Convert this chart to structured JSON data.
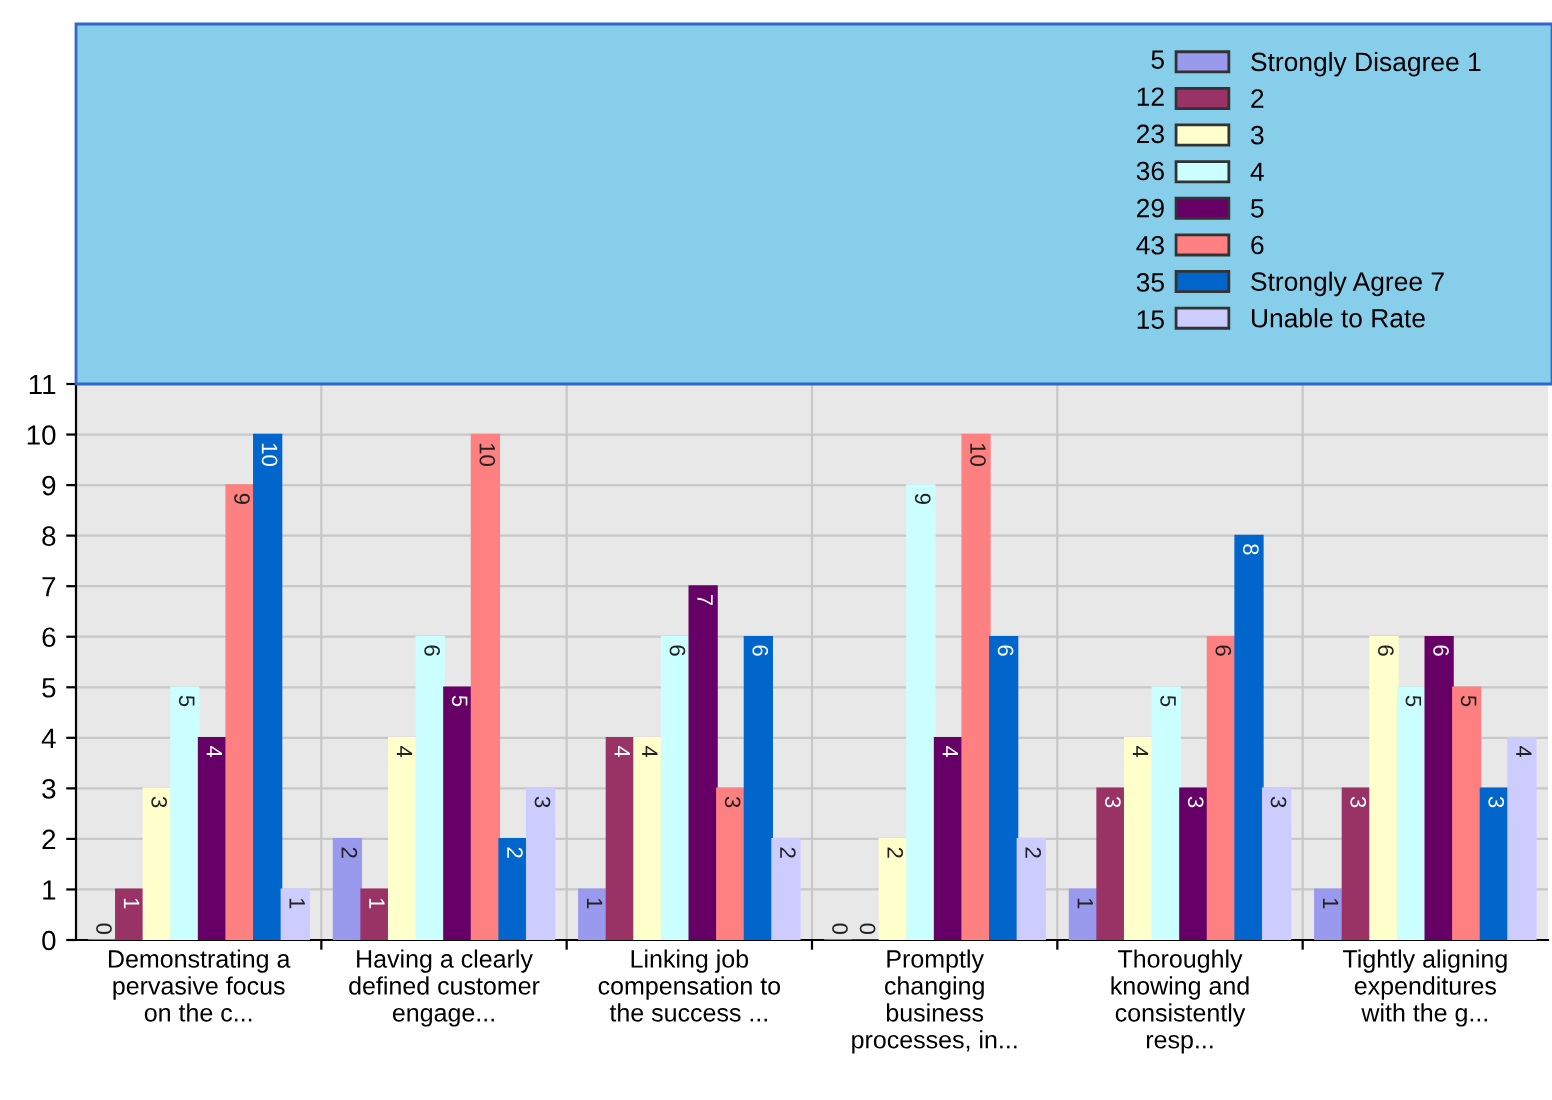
{
  "chart_data": {
    "type": "bar",
    "categories": [
      "Demonstrating a\npervasive focus\non the c...",
      "Having a clearly\ndefined customer\nengage...",
      "Linking job\ncompensation to\nthe success ...",
      "Promptly\nchanging\nbusiness\nprocesses, in...",
      "Thoroughly\nknowing and\nconsistently\nresp...",
      "Tightly aligning\nexpenditures\nwith the g..."
    ],
    "series": [
      {
        "name": "Strongly Disagree 1",
        "color": "#9999ee",
        "values": [
          0,
          2,
          1,
          0,
          1,
          1
        ]
      },
      {
        "name": "2",
        "color": "#993366",
        "values": [
          1,
          1,
          4,
          0,
          3,
          3
        ]
      },
      {
        "name": "3",
        "color": "#ffffcc",
        "values": [
          3,
          4,
          4,
          2,
          4,
          6
        ]
      },
      {
        "name": "4",
        "color": "#ccffff",
        "values": [
          5,
          6,
          6,
          9,
          5,
          5
        ]
      },
      {
        "name": "5",
        "color": "#660066",
        "values": [
          4,
          5,
          7,
          4,
          3,
          6
        ]
      },
      {
        "name": "6",
        "color": "#ff8080",
        "values": [
          9,
          10,
          3,
          10,
          6,
          5
        ]
      },
      {
        "name": "Strongly Agree 7",
        "color": "#0066cc",
        "values": [
          10,
          2,
          6,
          6,
          8,
          3
        ]
      },
      {
        "name": "Unable to Rate",
        "color": "#ccccff",
        "values": [
          1,
          3,
          2,
          2,
          3,
          4
        ]
      }
    ],
    "annotations": [
      "5",
      "12",
      "23",
      "36",
      "29",
      "43",
      "35",
      "15"
    ],
    "ylim": [
      0,
      11
    ],
    "yticks": [
      0,
      1,
      2,
      3,
      4,
      5,
      6,
      7,
      8,
      9,
      10,
      11
    ],
    "grid": true,
    "legend": "top right",
    "data_labels": true
  }
}
